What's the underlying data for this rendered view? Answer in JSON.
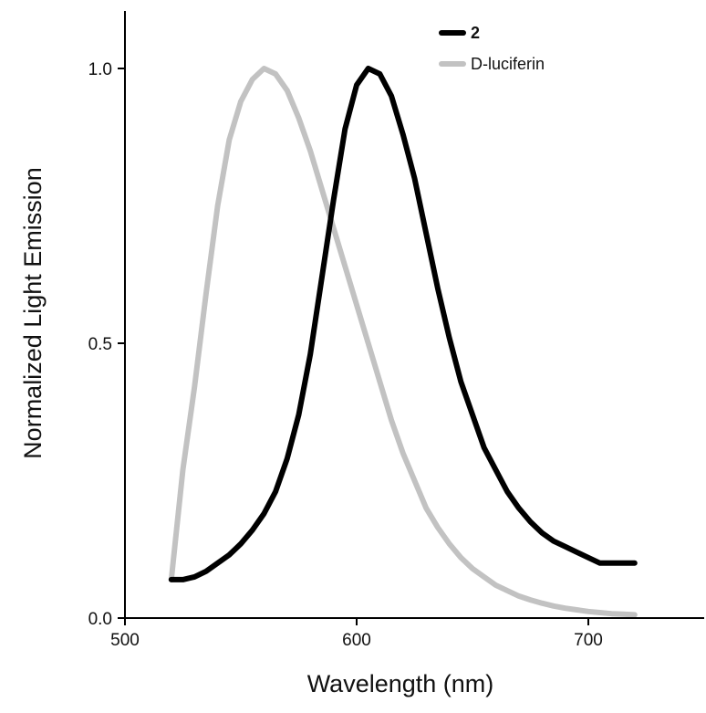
{
  "chart_data": {
    "type": "line",
    "title": "",
    "xlabel": "Wavelength (nm)",
    "ylabel": "Normalized Light Emission",
    "xlim": [
      500,
      750
    ],
    "ylim": [
      0.0,
      1.0
    ],
    "xticks": [
      500,
      600,
      700
    ],
    "xtick_labels": [
      "500",
      "600",
      "700"
    ],
    "yticks": [
      0.0,
      0.5,
      1.0
    ],
    "ytick_labels": [
      "0.0",
      "0.5",
      "1.0"
    ],
    "grid": false,
    "legend_position": "top-right",
    "series": [
      {
        "name": "2",
        "color": "#000000",
        "x": [
          520,
          525,
          530,
          535,
          540,
          545,
          550,
          555,
          560,
          565,
          570,
          575,
          580,
          585,
          590,
          595,
          600,
          605,
          610,
          615,
          620,
          625,
          630,
          635,
          640,
          645,
          650,
          655,
          660,
          665,
          670,
          675,
          680,
          685,
          690,
          695,
          700,
          705,
          710,
          715,
          720
        ],
        "y": [
          0.07,
          0.07,
          0.075,
          0.085,
          0.1,
          0.115,
          0.135,
          0.16,
          0.19,
          0.23,
          0.29,
          0.37,
          0.48,
          0.62,
          0.76,
          0.89,
          0.97,
          1.0,
          0.99,
          0.95,
          0.88,
          0.8,
          0.7,
          0.6,
          0.51,
          0.43,
          0.37,
          0.31,
          0.27,
          0.23,
          0.2,
          0.175,
          0.155,
          0.14,
          0.13,
          0.12,
          0.11,
          0.1,
          0.1,
          0.1,
          0.1
        ]
      },
      {
        "name": "D-luciferin",
        "color": "#c2c2c2",
        "x": [
          520,
          525,
          530,
          535,
          540,
          545,
          550,
          555,
          560,
          565,
          570,
          575,
          580,
          585,
          590,
          595,
          600,
          605,
          610,
          615,
          620,
          625,
          630,
          635,
          640,
          645,
          650,
          655,
          660,
          665,
          670,
          675,
          680,
          685,
          690,
          695,
          700,
          705,
          710,
          715,
          720
        ],
        "y": [
          0.07,
          0.27,
          0.42,
          0.59,
          0.75,
          0.87,
          0.94,
          0.98,
          1.0,
          0.99,
          0.96,
          0.91,
          0.85,
          0.78,
          0.71,
          0.64,
          0.57,
          0.5,
          0.43,
          0.36,
          0.3,
          0.25,
          0.2,
          0.165,
          0.135,
          0.11,
          0.09,
          0.075,
          0.06,
          0.05,
          0.04,
          0.033,
          0.027,
          0.022,
          0.018,
          0.015,
          0.012,
          0.01,
          0.008,
          0.007,
          0.006
        ]
      }
    ]
  }
}
